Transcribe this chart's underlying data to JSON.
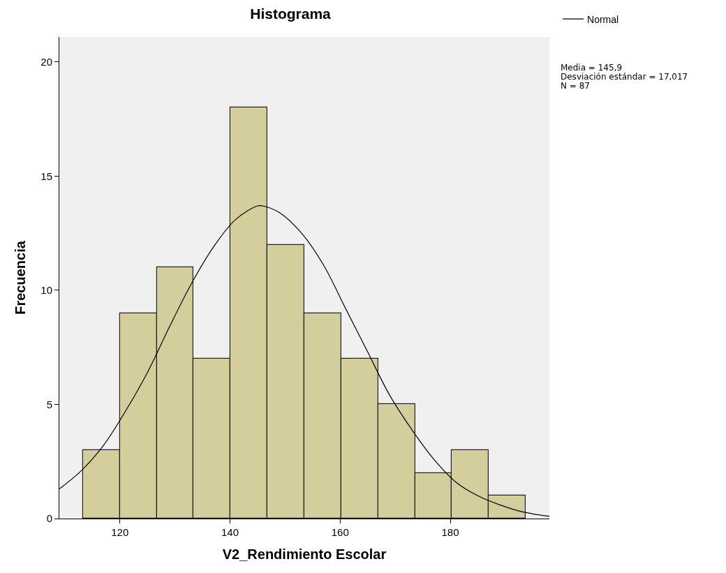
{
  "chart_data": {
    "type": "histogram",
    "title": "Histograma",
    "xlabel": "V2_Rendimiento Escolar",
    "ylabel": "Frecuencia",
    "series": [
      {
        "color": "#d3ce9b",
        "bins": [
          113.3,
          120,
          126.7,
          133.4,
          140.1,
          146.8,
          153.5,
          160.2,
          166.9,
          173.6,
          180.3,
          187,
          193.7
        ],
        "values": [
          3,
          9,
          11,
          7,
          18,
          12,
          9,
          7,
          5,
          2,
          3,
          1
        ]
      },
      {
        "type": "line",
        "name": "Normal",
        "color": "#000000",
        "x": [
          109,
          113,
          117,
          121,
          125,
          129,
          133,
          137,
          141,
          145,
          145.9,
          149,
          153,
          157,
          161,
          165,
          169,
          173,
          177,
          181,
          185,
          189,
          193,
          198
        ],
        "values": [
          1.3,
          2.1,
          3.2,
          4.7,
          6.4,
          8.4,
          10.3,
          11.9,
          13.1,
          13.7,
          13.7,
          13.4,
          12.5,
          11.1,
          9.2,
          7.3,
          5.4,
          3.9,
          2.6,
          1.6,
          1.0,
          0.6,
          0.3,
          0.1
        ]
      }
    ],
    "annotations": [
      "Media = 145,9",
      "Desviación estándar = 17,017",
      "N = 87"
    ],
    "xlim": [
      109,
      198
    ],
    "xticks": [
      120,
      140,
      160,
      180
    ],
    "ylim": [
      0,
      21.1
    ],
    "yticks": [
      0,
      5,
      10,
      15,
      20
    ],
    "grid": false,
    "legend": "top right",
    "marker": "none",
    "line_style": "solid"
  }
}
